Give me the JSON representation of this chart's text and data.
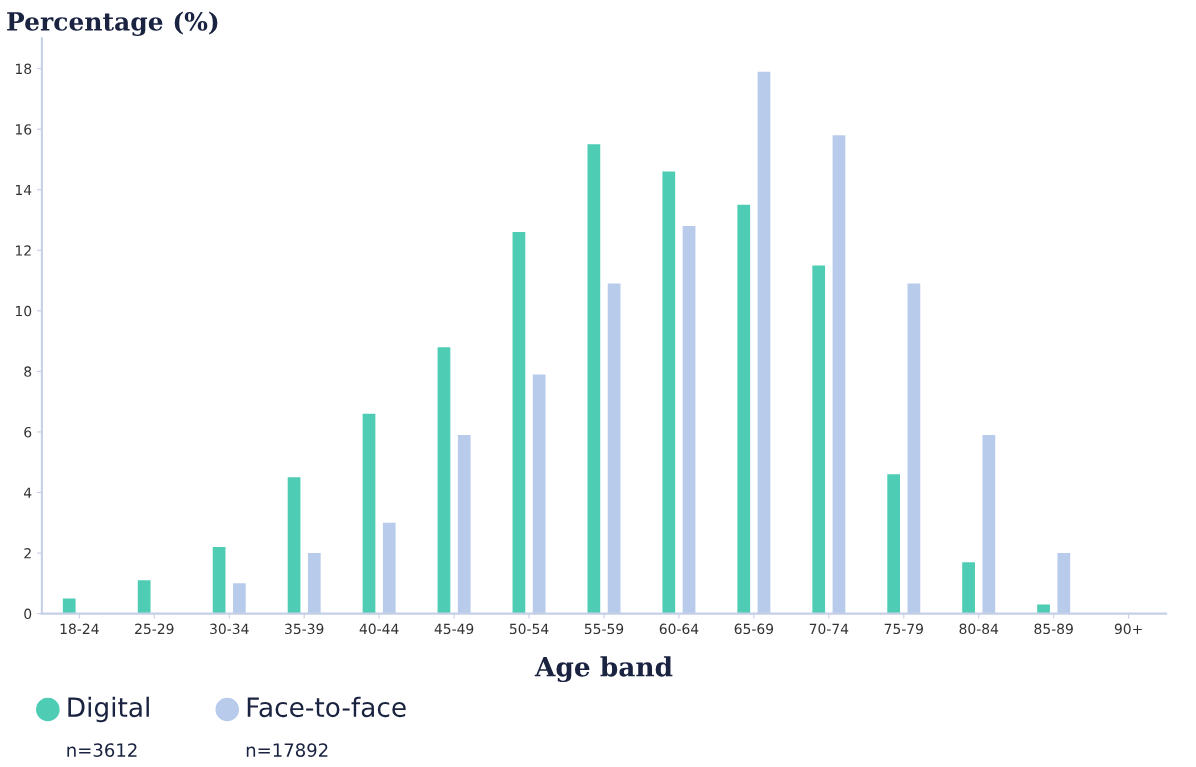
{
  "chart_data": {
    "type": "bar",
    "xlabel": "Age band",
    "ylabel": "Percentage (%)",
    "categories": [
      "18-24",
      "25-29",
      "30-34",
      "35-39",
      "40-44",
      "45-49",
      "50-54",
      "55-59",
      "60-64",
      "65-69",
      "70-74",
      "75-79",
      "80-84",
      "85-89",
      "90+"
    ],
    "series": [
      {
        "name": "Digital",
        "color": "#4ecdb4",
        "values": [
          0.5,
          1.1,
          2.2,
          4.5,
          6.6,
          8.8,
          12.6,
          15.5,
          14.6,
          13.5,
          11.5,
          4.6,
          1.7,
          0.3,
          0
        ]
      },
      {
        "name": "Face-to-face",
        "color": "#b8cbeb",
        "values": [
          0,
          0,
          1.0,
          2.0,
          3.0,
          5.9,
          7.9,
          10.9,
          12.8,
          17.9,
          15.8,
          10.9,
          5.9,
          2.0,
          0
        ]
      }
    ],
    "annotations": [
      "n=3612",
      "n=17892"
    ],
    "ylim": [
      0,
      19
    ],
    "yticks": [
      0,
      2,
      4,
      6,
      8,
      10,
      12,
      14,
      16,
      18
    ],
    "grid": false,
    "legend": "bottom left"
  }
}
